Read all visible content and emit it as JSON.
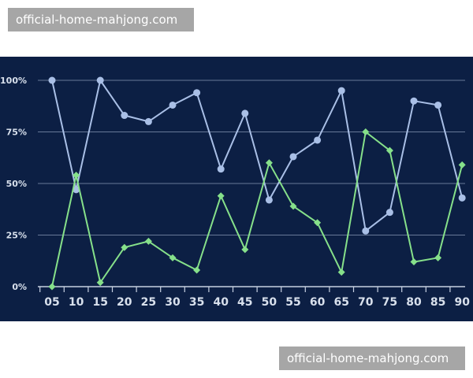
{
  "watermarks": {
    "top": "official-home-mahjong.com",
    "bottom": "official-home-mahjong.com"
  },
  "chart_data": {
    "type": "line",
    "title": "",
    "xlabel": "",
    "ylabel": "",
    "categories": [
      "05",
      "10",
      "15",
      "20",
      "25",
      "30",
      "35",
      "40",
      "45",
      "50",
      "55",
      "60",
      "65",
      "70",
      "75",
      "80",
      "85",
      "90"
    ],
    "ylim": [
      0,
      100
    ],
    "y_ticks": [
      0,
      25,
      50,
      75,
      100
    ],
    "y_tick_labels": [
      "0%",
      "25%",
      "50%",
      "75%",
      "100%"
    ],
    "grid": true,
    "background_color": "#0c1f44",
    "series": [
      {
        "color": "#a9bfe6",
        "marker": "circle",
        "values": [
          100,
          47,
          100,
          83,
          80,
          88,
          94,
          57,
          84,
          42,
          63,
          71,
          95,
          27,
          36,
          90,
          88,
          43
        ]
      },
      {
        "color": "#86e08a",
        "marker": "diamond",
        "values": [
          0,
          54,
          2,
          19,
          22,
          14,
          8,
          44,
          18,
          60,
          39,
          31,
          7,
          75,
          66,
          12,
          14,
          59
        ]
      }
    ]
  }
}
